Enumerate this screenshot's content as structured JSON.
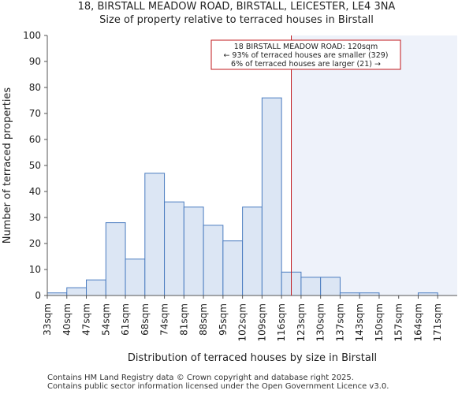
{
  "chart_data": {
    "type": "bar",
    "title": "18, BIRSTALL MEADOW ROAD, BIRSTALL, LEICESTER, LE4 3NA",
    "subtitle": "Size of property relative to terraced houses in Birstall",
    "xlabel": "Distribution of terraced houses by size in Birstall",
    "ylabel": "Number of terraced properties",
    "categories": [
      "33sqm",
      "40sqm",
      "47sqm",
      "54sqm",
      "61sqm",
      "68sqm",
      "74sqm",
      "81sqm",
      "88sqm",
      "95sqm",
      "102sqm",
      "109sqm",
      "116sqm",
      "123sqm",
      "130sqm",
      "137sqm",
      "143sqm",
      "150sqm",
      "157sqm",
      "164sqm",
      "171sqm"
    ],
    "values": [
      1,
      3,
      6,
      28,
      14,
      47,
      36,
      34,
      27,
      21,
      34,
      76,
      9,
      7,
      7,
      1,
      1,
      0,
      0,
      1,
      0
    ],
    "ylim": [
      0,
      100
    ],
    "yticks": [
      0,
      10,
      20,
      30,
      40,
      50,
      60,
      70,
      80,
      90,
      100
    ],
    "marker": {
      "value_sqm": 120,
      "position_bins": 12.5,
      "annotation": [
        "18 BIRSTALL MEADOW ROAD: 120sqm",
        "← 93% of terraced houses are smaller (329)",
        "6% of terraced houses are larger (21) →"
      ]
    },
    "colors": {
      "bar_fill": "#dce6f4",
      "bar_edge": "#4a7cc0",
      "marker": "#c0181c",
      "shade": "#eef2fa"
    }
  },
  "footer": {
    "line1": "Contains HM Land Registry data © Crown copyright and database right 2025.",
    "line2": "Contains public sector information licensed under the Open Government Licence v3.0."
  }
}
